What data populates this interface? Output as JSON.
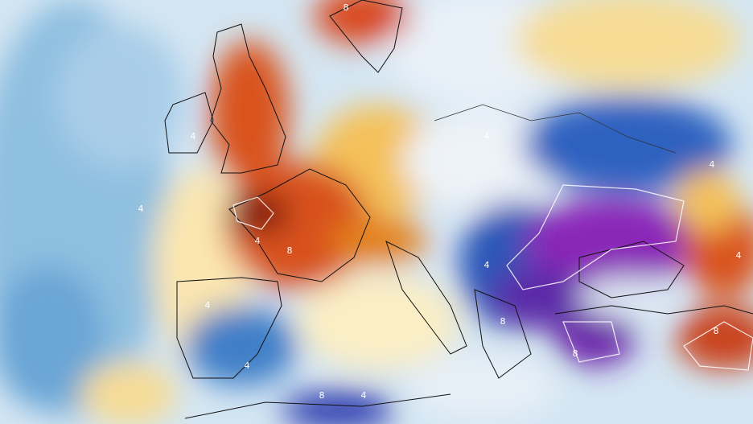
{
  "contour_labels": [
    "8",
    "4",
    "4",
    "4",
    "8",
    "4",
    "4",
    "4",
    "4",
    "4",
    "8",
    "8",
    "4",
    "8",
    "4",
    "8"
  ]
}
